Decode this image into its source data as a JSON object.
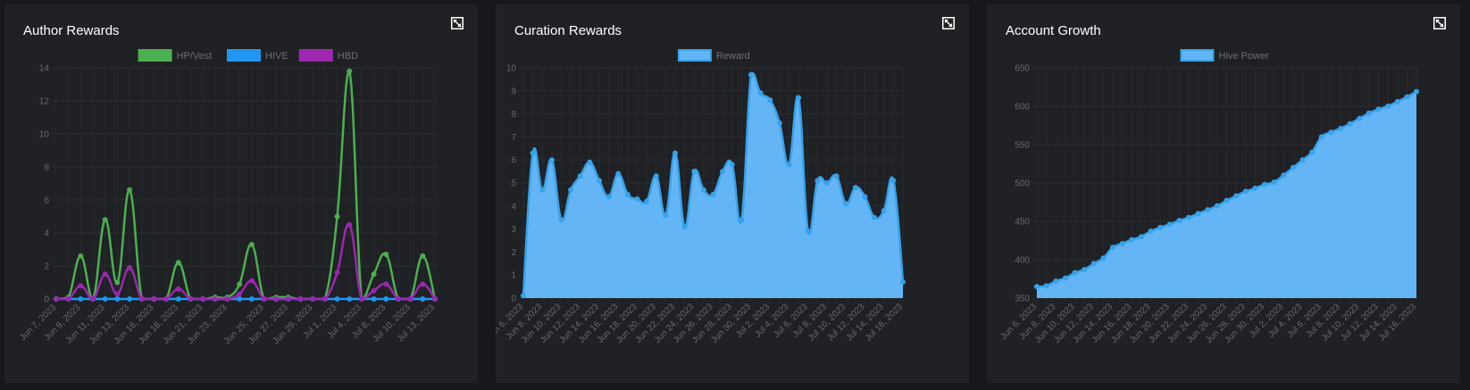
{
  "panels": [
    {
      "title": "Author Rewards",
      "chart_data": {
        "type": "line",
        "legend_position": "top",
        "grid": true,
        "ylim": [
          0,
          14
        ],
        "yticks": [
          0,
          2,
          4,
          6,
          8,
          10,
          12,
          14
        ],
        "x_tick_labels": [
          "Jun 7, 2023",
          "Jun 9, 2023",
          "Jun 11, 2023",
          "Jun 13, 2023",
          "Jun 16, 2023",
          "Jun 18, 2023",
          "Jun 21, 2023",
          "Jun 23, 2023",
          "Jun 25, 2023",
          "Jun 27, 2023",
          "Jun 29, 2023",
          "Jul 1, 2023",
          "Jul 4, 2023",
          "Jul 8, 2023",
          "Jul 10, 2023",
          "Jul 13, 2023"
        ],
        "num_points": 32,
        "series": [
          {
            "name": "HP/Vest",
            "color": "#4caf50",
            "fill": "#4caf50",
            "values": [
              0,
              0.1,
              2.6,
              0,
              4.8,
              1,
              6.6,
              0,
              0,
              0,
              2.2,
              0,
              0,
              0.1,
              0.1,
              0.9,
              3.3,
              0,
              0.1,
              0.1,
              0,
              0,
              0,
              5,
              13.8,
              0,
              1.5,
              2.7,
              0,
              0,
              2.6,
              0
            ]
          },
          {
            "name": "HIVE",
            "color": "#2196f3",
            "fill": "#2196f3",
            "values": [
              0,
              0,
              0,
              0,
              0,
              0,
              0,
              0,
              0,
              0,
              0,
              0,
              0,
              0,
              0,
              0,
              0,
              0,
              0,
              0,
              0,
              0,
              0,
              0,
              0,
              0,
              0,
              0,
              0,
              0,
              0,
              0
            ]
          },
          {
            "name": "HBD",
            "color": "#9c27b0",
            "fill": "#9c27b0",
            "values": [
              0,
              0,
              0.8,
              0,
              1.5,
              0.3,
              1.9,
              0,
              0,
              0,
              0.6,
              0,
              0,
              0,
              0,
              0.3,
              1.1,
              0,
              0,
              0,
              0,
              0,
              0,
              1.6,
              4.5,
              0,
              0.5,
              0.9,
              0,
              0,
              0.9,
              0
            ]
          }
        ]
      }
    },
    {
      "title": "Curation Rewards",
      "chart_data": {
        "type": "area",
        "legend_position": "top",
        "grid": true,
        "ylim": [
          0,
          10
        ],
        "yticks": [
          0,
          1,
          2,
          3,
          4,
          5,
          6,
          7,
          8,
          9,
          10
        ],
        "x_tick_labels": [
          "Jun 6, 2023",
          "Jun 8, 2023",
          "Jun 10, 2023",
          "Jun 12, 2023",
          "Jun 14, 2023",
          "Jun 16, 2023",
          "Jun 18, 2023",
          "Jun 20, 2023",
          "Jun 22, 2023",
          "Jun 24, 2023",
          "Jun 26, 2023",
          "Jun 28, 2023",
          "Jun 30, 2023",
          "Jul 2, 2023",
          "Jul 4, 2023",
          "Jul 6, 2023",
          "Jul 8, 2023",
          "Jul 10, 2023",
          "Jul 12, 2023",
          "Jul 14, 2023",
          "Jul 16, 2023"
        ],
        "num_points": 41,
        "series": [
          {
            "name": "Reward",
            "color": "#36a2eb",
            "fill": "#64b5f6",
            "values": [
              0.1,
              6.3,
              4.7,
              6.0,
              3.4,
              4.7,
              5.3,
              5.9,
              5.1,
              4.4,
              5.4,
              4.5,
              4.3,
              4.2,
              5.3,
              3.6,
              6.3,
              3.1,
              5.5,
              4.7,
              4.5,
              5.5,
              5.8,
              3.4,
              9.7,
              8.9,
              8.6,
              7.6,
              5.8,
              8.7,
              2.9,
              5.1,
              5.0,
              5.3,
              4.1,
              4.8,
              4.4,
              3.5,
              3.8,
              5.1,
              0.7
            ]
          }
        ]
      }
    },
    {
      "title": "Account Growth",
      "chart_data": {
        "type": "area",
        "legend_position": "top",
        "grid": true,
        "ylim": [
          350,
          650
        ],
        "yticks": [
          350,
          400,
          450,
          500,
          550,
          600,
          650
        ],
        "x_tick_labels": [
          "Jun 6, 2023",
          "Jun 8, 2023",
          "Jun 10, 2023",
          "Jun 12, 2023",
          "Jun 14, 2023",
          "Jun 16, 2023",
          "Jun 18, 2023",
          "Jun 20, 2023",
          "Jun 22, 2023",
          "Jun 24, 2023",
          "Jun 26, 2023",
          "Jun 28, 2023",
          "Jun 30, 2023",
          "Jul 2, 2023",
          "Jul 4, 2023",
          "Jul 6, 2023",
          "Jul 8, 2023",
          "Jul 10, 2023",
          "Jul 12, 2023",
          "Jul 14, 2023",
          "Jul 16, 2023"
        ],
        "num_points": 41,
        "series": [
          {
            "name": "Hive Power",
            "color": "#36a2eb",
            "fill": "#64b5f6",
            "values": [
              365,
              366,
              372,
              376,
              383,
              387,
              395,
              402,
              416,
              421,
              426,
              430,
              437,
              442,
              446,
              451,
              455,
              460,
              465,
              470,
              477,
              483,
              489,
              493,
              498,
              501,
              510,
              520,
              530,
              540,
              560,
              566,
              571,
              577,
              584,
              591,
              596,
              600,
              606,
              612,
              619
            ]
          }
        ]
      }
    }
  ]
}
